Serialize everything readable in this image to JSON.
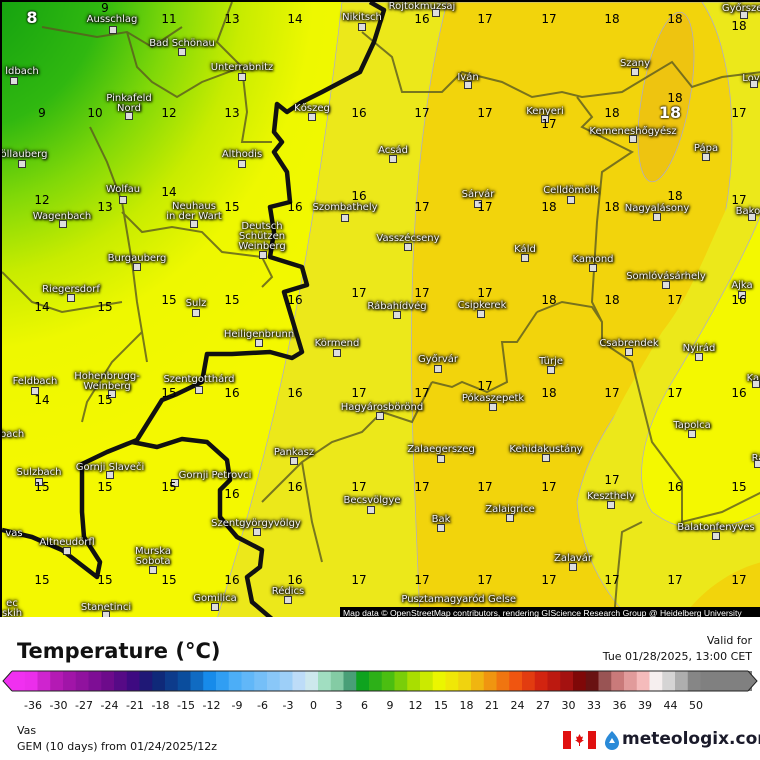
{
  "map": {
    "attribution": "Map data © OpenStreetMap contributors, rendering GIScience Research Group @ Heidelberg University",
    "min_marker": "8",
    "max_marker": "18",
    "temperature_grid": [
      [
        "8",
        "9",
        "11",
        "13",
        "14",
        "",
        "16",
        "17",
        "17",
        "18",
        "18",
        "18"
      ],
      [
        "9",
        "10",
        "12",
        "13",
        "",
        "16",
        "17",
        "17",
        "17",
        "18",
        "18",
        "17"
      ],
      [
        "12",
        "13",
        "14",
        "15",
        "16",
        "16",
        "17",
        "17",
        "18",
        "18",
        "18",
        "17"
      ],
      [
        "14",
        "15",
        "15",
        "15",
        "16",
        "17",
        "17",
        "17",
        "18",
        "18",
        "17",
        "16"
      ],
      [
        "14",
        "15",
        "15",
        "16",
        "16",
        "17",
        "17",
        "17",
        "18",
        "17",
        "17",
        "16"
      ],
      [
        "15",
        "15",
        "15",
        "16",
        "16",
        "17",
        "17",
        "17",
        "17",
        "17",
        "16",
        "15"
      ],
      [
        "15",
        "15",
        "15",
        "16",
        "16",
        "17",
        "17",
        "17",
        "17",
        "17",
        "17",
        "17"
      ]
    ],
    "places": [
      "Ausschlag",
      "Bad Schönau",
      "Unterrabnitz",
      "ldbach",
      "Pinkafeld\nNord",
      "Kőszeg",
      "Nikitsch",
      "Althodis",
      "öllauberg",
      "Wolfau",
      "Neuhaus\nin der Wart",
      "Wagenbach",
      "Deutsch\nSchützen\nWeinberg",
      "Szombathely",
      "Burgauberg",
      "Riegersdorf",
      "Sulz",
      "Rábahídvég",
      "Csipkerek",
      "Heiligenbrunn",
      "Körmend",
      "Feldbach",
      "Hohenbrugg-\nWeinberg",
      "Szentgotthárd",
      "Hagyárosbörönd",
      "Győrvár",
      "Türje",
      "Csabrendek",
      "Nyirád",
      "Pókaszepetk",
      "Tapolca",
      "Zalaegerszeg",
      "Kehidakustány",
      "Pankasz",
      "Sulzbach",
      "Gornji Slaveči",
      "Gornji Petrovci",
      "Becsvölgye",
      "Keszthely",
      "Zalaigrice",
      "Bak",
      "Szentgyörgyvölgy",
      "Balatonfenyves",
      "Altneudörfl",
      "Murska\nSobota",
      "Zalavár",
      "Rédics",
      "Gomilica",
      "Stanetinci",
      "Pusztamagyaród",
      "Gelse",
      "Rojtokmuzsaj",
      "Iván",
      "Kenyeri",
      "Szany",
      "Kemeneshőgyész",
      "Pápa",
      "Celldömölk",
      "Sárvár",
      "Acsád",
      "Vasszécseny",
      "Nagyalásony",
      "Káld",
      "Kamond",
      "Somlóvásárhely",
      "Ajka",
      "Bakor",
      "Győrszem",
      "Lova",
      "Kap",
      "Rá",
      "bach",
      "vas",
      "ec\nskih"
    ]
  },
  "legend": {
    "title": "Temperature (°C)",
    "valid_label": "Valid for",
    "valid_time": "Tue 01/28/2025, 13:00 CET",
    "region": "Vas",
    "model": "GEM (10 days) from 01/24/2025/12z",
    "brand": "meteologix.com",
    "ticks": [
      "-36",
      "-30",
      "-27",
      "-24",
      "-21",
      "-18",
      "-15",
      "-12",
      "-9",
      "-6",
      "-3",
      "0",
      "3",
      "6",
      "9",
      "12",
      "15",
      "18",
      "21",
      "24",
      "27",
      "30",
      "33",
      "36",
      "39",
      "44",
      "50"
    ],
    "colorbar_stops": [
      [
        "-37",
        "#f030f0"
      ],
      [
        "-30",
        "#b018b0"
      ],
      [
        "-24",
        "#6a0a8a"
      ],
      [
        "-21",
        "#3a0a80"
      ],
      [
        "-19",
        "#102070"
      ],
      [
        "-15",
        "#0a50a0"
      ],
      [
        "-12",
        "#1890f0"
      ],
      [
        "-9",
        "#50b0f8"
      ],
      [
        "-3",
        "#a0d0f8"
      ],
      [
        "-0.5",
        "#d8e8f8"
      ],
      [
        "0.5",
        "#b0e8d0"
      ],
      [
        "3",
        "#80c8a0"
      ],
      [
        "4.5",
        "#409870"
      ],
      [
        "5.5",
        "#08a020"
      ],
      [
        "9",
        "#50c010"
      ],
      [
        "12",
        "#b0e000"
      ],
      [
        "15",
        "#f0f800"
      ],
      [
        "18",
        "#f0d010"
      ],
      [
        "21",
        "#f09010"
      ],
      [
        "24",
        "#f05010"
      ],
      [
        "27",
        "#d02010"
      ],
      [
        "30",
        "#a01010"
      ],
      [
        "32.5",
        "#600000"
      ],
      [
        "33.5",
        "#804040"
      ],
      [
        "36",
        "#d08080"
      ],
      [
        "39",
        "#f8c0c0"
      ],
      [
        "41",
        "#f8f0f0"
      ],
      [
        "44",
        "#d0d0d0"
      ],
      [
        "50",
        "#808080"
      ]
    ]
  },
  "colors": {
    "flag_red": "#e01010",
    "brand_text": "#1a1a2a"
  }
}
